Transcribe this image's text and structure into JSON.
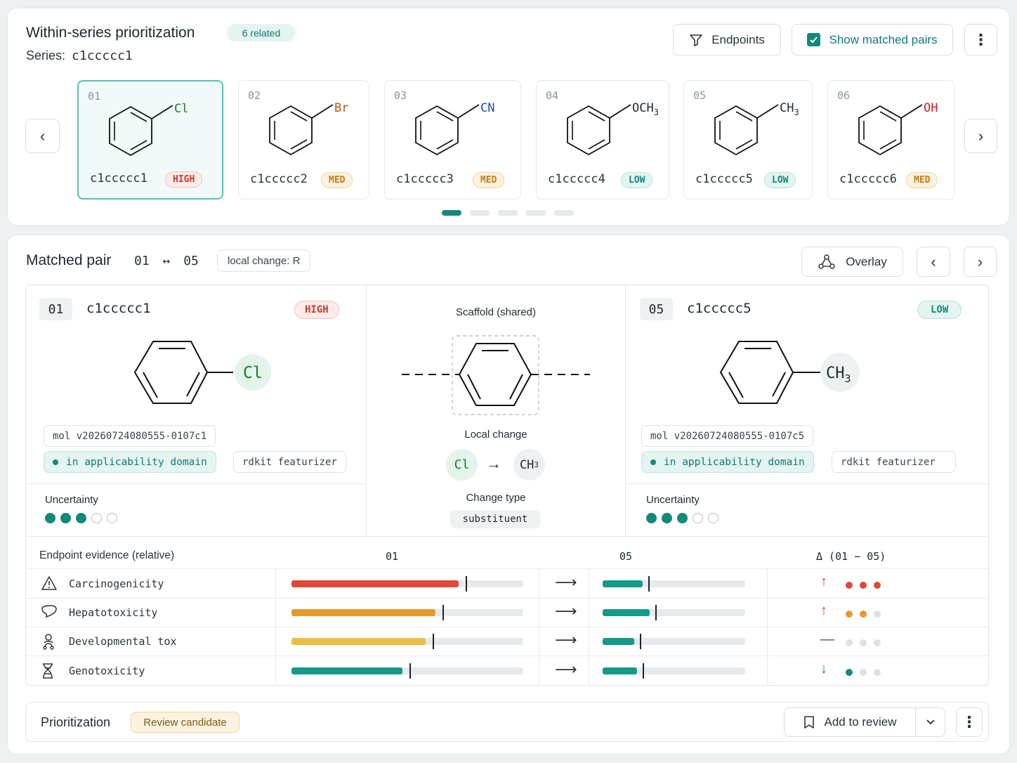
{
  "top": {
    "title": "Within-series prioritization",
    "related_badge": "6 related",
    "series_label": "Series:",
    "series_value": "c1ccccc1",
    "endpoints_button": "Endpoints",
    "show_matched_label": "Show matched pairs",
    "show_matched_checked": true
  },
  "molecules": [
    {
      "idx": "01",
      "smiles": "c1ccccc1",
      "substituent": "Cl",
      "risk": "HIGH",
      "sub_color": "#1a7a2e",
      "selected": true
    },
    {
      "idx": "02",
      "smiles": "c1ccccc2",
      "substituent": "Br",
      "risk": "MED",
      "sub_color": "#b5560f"
    },
    {
      "idx": "03",
      "smiles": "c1ccccc3",
      "substituent": "CN",
      "risk": "MED",
      "sub_color": "#1f4fb8"
    },
    {
      "idx": "04",
      "smiles": "c1ccccc4",
      "substituent": "OCH3",
      "risk": "LOW",
      "sub_color": "#1f2a30"
    },
    {
      "idx": "05",
      "smiles": "c1ccccc5",
      "substituent": "CH3",
      "risk": "LOW",
      "sub_color": "#1f2a30"
    },
    {
      "idx": "06",
      "smiles": "c1ccccc6",
      "substituent": "OH",
      "risk": "MED",
      "sub_color": "#d11f1f"
    }
  ],
  "carousel": {
    "pages": 5,
    "active_page": 1
  },
  "pair": {
    "title": "Matched pair",
    "from_idx": "01",
    "to_idx": "05",
    "arrow": "↔",
    "local_change_tag": "local change: R",
    "overlay_button": "Overlay",
    "left": {
      "idx": "01",
      "smiles": "c1ccccc1",
      "risk": "HIGH",
      "substituent": "Cl",
      "mol_id": "mol v20260724080555-0107c1",
      "domain": "in applicability domain",
      "featurizer": "rdkit featurizer",
      "uncertainty_label": "Uncertainty",
      "uncertainty_level": 3,
      "uncertainty_max": 5
    },
    "right": {
      "idx": "05",
      "smiles": "c1ccccc5",
      "risk": "LOW",
      "substituent": "CH3",
      "mol_id": "mol v20260724080555-0107c5",
      "domain": "in applicability domain",
      "featurizer": "rdkit featurizer",
      "uncertainty_label": "Uncertainty",
      "uncertainty_level": 3,
      "uncertainty_max": 5
    },
    "center": {
      "scaffold_label": "Scaffold (shared)",
      "local_change_label": "Local change",
      "change_from": "Cl",
      "change_arrow": "→",
      "change_to": "CH3",
      "change_type_label": "Change type",
      "change_type_value": "substituent"
    }
  },
  "evidence": {
    "header_label": "Endpoint evidence (relative)",
    "col_from": "01",
    "col_to": "05",
    "col_delta": "Δ (01 − 05)",
    "rows": [
      {
        "name": "Carcinogenicity",
        "icon": "warning-icon",
        "from": 0.72,
        "from_color": "#dd4a35",
        "to": 0.28,
        "delta_dir": "↑",
        "delta_color": "#dd4a35",
        "severity": 3
      },
      {
        "name": "Hepatotoxicity",
        "icon": "liver-icon",
        "from": 0.62,
        "from_color": "#e59a2f",
        "to": 0.33,
        "delta_dir": "↑",
        "delta_color": "#dd4a35",
        "sev_color": "#e59a2f",
        "severity": 2
      },
      {
        "name": "Developmental tox",
        "icon": "baby-icon",
        "from": 0.58,
        "from_color": "#e9bf45",
        "to": 0.22,
        "delta_dir": "—",
        "delta_color": "#555",
        "severity": 0
      },
      {
        "name": "Genotoxicity",
        "icon": "dna-icon",
        "from": 0.48,
        "from_color": "#159a88",
        "to": 0.24,
        "delta_dir": "↓",
        "delta_color": "#13897a",
        "sev_color": "#13897a",
        "severity": 1
      }
    ]
  },
  "footer": {
    "label": "Prioritization",
    "status": "Review candidate",
    "add_button": "Add to review"
  }
}
